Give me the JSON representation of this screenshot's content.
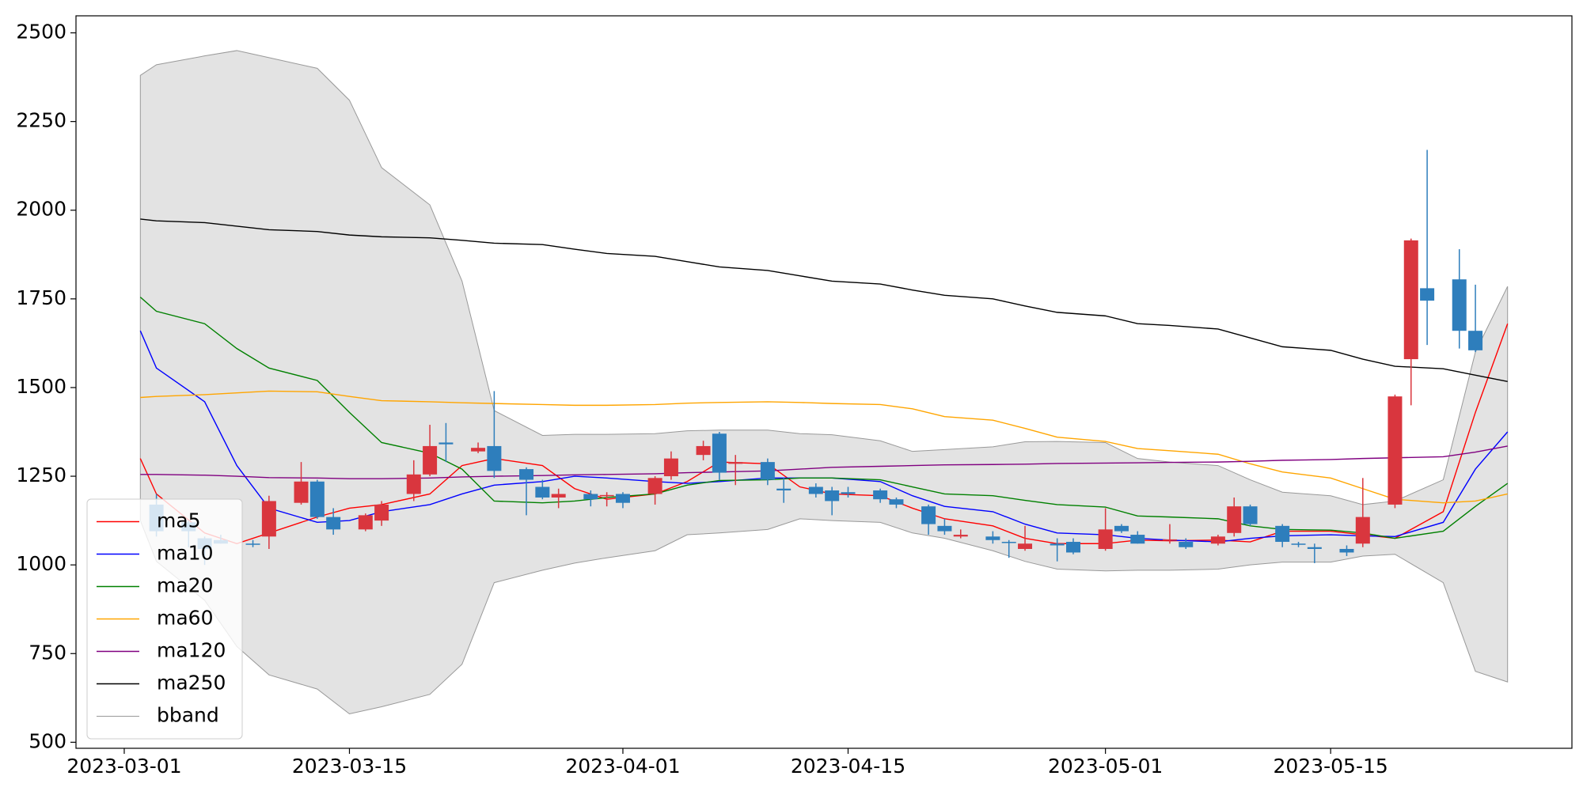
{
  "chart_data": {
    "type": "candlestick",
    "xlim": [
      "2023-02-26",
      "2023-05-30"
    ],
    "xticks": [
      "2023-03-01",
      "2023-03-15",
      "2023-04-01",
      "2023-04-15",
      "2023-05-01",
      "2023-05-15"
    ],
    "ylim": [
      483,
      2548
    ],
    "yticks": [
      500,
      750,
      1000,
      1250,
      1500,
      1750,
      2000,
      2250,
      2500
    ],
    "legend": "lower left",
    "candles": {
      "up_color": "#d9363e",
      "down_color": "#2e7ebc",
      "x": [
        "2023-03-03",
        "2023-03-05",
        "2023-03-06",
        "2023-03-07",
        "2023-03-09",
        "2023-03-10",
        "2023-03-12",
        "2023-03-13",
        "2023-03-14",
        "2023-03-16",
        "2023-03-17",
        "2023-03-19",
        "2023-03-20",
        "2023-03-21",
        "2023-03-23",
        "2023-03-24",
        "2023-03-26",
        "2023-03-27",
        "2023-03-28",
        "2023-03-30",
        "2023-03-31",
        "2023-04-01",
        "2023-04-03",
        "2023-04-04",
        "2023-04-06",
        "2023-04-07",
        "2023-04-08",
        "2023-04-10",
        "2023-04-11",
        "2023-04-13",
        "2023-04-14",
        "2023-04-15",
        "2023-04-17",
        "2023-04-18",
        "2023-04-20",
        "2023-04-21",
        "2023-04-22",
        "2023-04-24",
        "2023-04-25",
        "2023-04-26",
        "2023-04-28",
        "2023-04-29",
        "2023-05-01",
        "2023-05-02",
        "2023-05-03",
        "2023-05-05",
        "2023-05-06",
        "2023-05-08",
        "2023-05-09",
        "2023-05-10",
        "2023-05-12",
        "2023-05-13",
        "2023-05-14",
        "2023-05-16",
        "2023-05-17",
        "2023-05-19",
        "2023-05-20",
        "2023-05-21",
        "2023-05-23",
        "2023-05-24"
      ],
      "open": [
        1170,
        1120,
        1075,
        1070,
        1060,
        1080,
        1175,
        1235,
        1135,
        1100,
        1125,
        1200,
        1255,
        1345,
        1320,
        1335,
        1270,
        1220,
        1190,
        1200,
        1195,
        1200,
        1200,
        1250,
        1310,
        1370,
        1285,
        1290,
        1215,
        1220,
        1210,
        1205,
        1210,
        1185,
        1165,
        1110,
        1080,
        1080,
        1065,
        1045,
        1060,
        1065,
        1045,
        1110,
        1085,
        1070,
        1065,
        1060,
        1090,
        1165,
        1110,
        1060,
        1050,
        1045,
        1060,
        1170,
        1580,
        1780,
        1805,
        1660
      ],
      "high": [
        1200,
        1125,
        1080,
        1085,
        1070,
        1195,
        1290,
        1240,
        1160,
        1145,
        1180,
        1295,
        1395,
        1400,
        1345,
        1490,
        1275,
        1240,
        1215,
        1210,
        1205,
        1205,
        1250,
        1320,
        1350,
        1375,
        1310,
        1300,
        1245,
        1230,
        1220,
        1220,
        1215,
        1190,
        1170,
        1130,
        1100,
        1095,
        1070,
        1110,
        1075,
        1075,
        1160,
        1115,
        1095,
        1115,
        1075,
        1085,
        1190,
        1170,
        1115,
        1065,
        1060,
        1055,
        1245,
        1480,
        1920,
        2170,
        1890,
        1790
      ],
      "low": [
        1080,
        1050,
        1000,
        1060,
        1050,
        1045,
        1170,
        1130,
        1085,
        1095,
        1110,
        1180,
        1250,
        1290,
        1315,
        1245,
        1140,
        1185,
        1160,
        1165,
        1165,
        1160,
        1170,
        1240,
        1295,
        1240,
        1225,
        1225,
        1175,
        1190,
        1140,
        1190,
        1175,
        1160,
        1085,
        1085,
        1075,
        1060,
        1020,
        1040,
        1010,
        1030,
        1040,
        1090,
        1060,
        1060,
        1045,
        1055,
        1080,
        1110,
        1050,
        1050,
        1005,
        1025,
        1050,
        1160,
        1450,
        1620,
        1610,
        1600
      ],
      "close": [
        1095,
        1095,
        1045,
        1060,
        1058,
        1180,
        1235,
        1135,
        1100,
        1140,
        1170,
        1255,
        1335,
        1340,
        1330,
        1265,
        1240,
        1190,
        1200,
        1185,
        1197,
        1175,
        1245,
        1300,
        1335,
        1260,
        1290,
        1240,
        1210,
        1200,
        1180,
        1200,
        1185,
        1170,
        1115,
        1095,
        1085,
        1070,
        1063,
        1060,
        1055,
        1035,
        1100,
        1095,
        1060,
        1072,
        1050,
        1080,
        1165,
        1115,
        1065,
        1058,
        1045,
        1035,
        1135,
        1475,
        1915,
        1745,
        1660,
        1605
      ]
    },
    "x": [
      "2023-03-02",
      "2023-03-03",
      "2023-03-06",
      "2023-03-08",
      "2023-03-10",
      "2023-03-13",
      "2023-03-15",
      "2023-03-17",
      "2023-03-20",
      "2023-03-22",
      "2023-03-24",
      "2023-03-27",
      "2023-03-29",
      "2023-03-31",
      "2023-04-03",
      "2023-04-05",
      "2023-04-07",
      "2023-04-10",
      "2023-04-12",
      "2023-04-14",
      "2023-04-17",
      "2023-04-19",
      "2023-04-21",
      "2023-04-24",
      "2023-04-26",
      "2023-04-28",
      "2023-05-01",
      "2023-05-03",
      "2023-05-05",
      "2023-05-08",
      "2023-05-10",
      "2023-05-12",
      "2023-05-15",
      "2023-05-17",
      "2023-05-19",
      "2023-05-22",
      "2023-05-24",
      "2023-05-26"
    ],
    "series": [
      {
        "name": "ma5",
        "color": "#ff0000",
        "values": [
          1300,
          1200,
          1090,
          1060,
          1090,
          1135,
          1160,
          1170,
          1200,
          1280,
          1300,
          1280,
          1215,
          1185,
          1200,
          1235,
          1290,
          1285,
          1220,
          1200,
          1195,
          1160,
          1130,
          1110,
          1075,
          1060,
          1060,
          1070,
          1068,
          1070,
          1065,
          1095,
          1095,
          1085,
          1075,
          1150,
          1430,
          1680
        ]
      },
      {
        "name": "ma10",
        "color": "#0000ff",
        "values": [
          1660,
          1555,
          1460,
          1280,
          1160,
          1120,
          1125,
          1150,
          1170,
          1200,
          1225,
          1235,
          1250,
          1245,
          1235,
          1230,
          1235,
          1245,
          1245,
          1245,
          1235,
          1195,
          1165,
          1150,
          1115,
          1090,
          1085,
          1075,
          1070,
          1065,
          1075,
          1082,
          1085,
          1082,
          1080,
          1120,
          1270,
          1375
        ]
      },
      {
        "name": "ma20",
        "color": "#008000",
        "values": [
          1755,
          1715,
          1680,
          1610,
          1555,
          1520,
          1430,
          1345,
          1315,
          1270,
          1180,
          1175,
          1180,
          1190,
          1200,
          1225,
          1238,
          1240,
          1245,
          1245,
          1240,
          1220,
          1200,
          1195,
          1182,
          1170,
          1163,
          1138,
          1135,
          1130,
          1110,
          1100,
          1098,
          1090,
          1075,
          1095,
          1165,
          1230
        ]
      },
      {
        "name": "ma60",
        "color": "#ffa500",
        "values": [
          1472,
          1475,
          1480,
          1485,
          1490,
          1488,
          1475,
          1463,
          1460,
          1457,
          1455,
          1452,
          1450,
          1450,
          1452,
          1456,
          1458,
          1460,
          1458,
          1455,
          1452,
          1440,
          1418,
          1408,
          1385,
          1360,
          1348,
          1328,
          1322,
          1312,
          1285,
          1262,
          1245,
          1215,
          1185,
          1175,
          1180,
          1200
        ]
      },
      {
        "name": "ma120",
        "color": "#800080",
        "values": [
          1255,
          1255,
          1253,
          1250,
          1246,
          1245,
          1243,
          1243,
          1245,
          1248,
          1250,
          1252,
          1254,
          1255,
          1257,
          1260,
          1262,
          1265,
          1270,
          1275,
          1278,
          1280,
          1282,
          1283,
          1284,
          1286,
          1287,
          1288,
          1289,
          1290,
          1292,
          1295,
          1297,
          1300,
          1302,
          1305,
          1318,
          1335
        ]
      },
      {
        "name": "ma250",
        "color": "#000000",
        "values": [
          1975,
          1970,
          1965,
          1955,
          1945,
          1940,
          1930,
          1925,
          1922,
          1915,
          1907,
          1903,
          1890,
          1878,
          1870,
          1855,
          1840,
          1830,
          1815,
          1800,
          1792,
          1775,
          1760,
          1750,
          1730,
          1712,
          1702,
          1680,
          1675,
          1665,
          1640,
          1615,
          1605,
          1580,
          1560,
          1553,
          1535,
          1517
        ]
      }
    ],
    "band": {
      "name": "bband",
      "color": "#e3e3e3",
      "edge_color": "#999999",
      "upper": [
        2380,
        2410,
        2435,
        2450,
        2430,
        2400,
        2310,
        2120,
        2015,
        1800,
        1435,
        1365,
        1368,
        1368,
        1370,
        1378,
        1380,
        1380,
        1370,
        1367,
        1350,
        1320,
        1325,
        1333,
        1347,
        1348,
        1345,
        1300,
        1290,
        1280,
        1240,
        1205,
        1195,
        1170,
        1180,
        1240,
        1600,
        1785
      ],
      "lower": [
        1125,
        1010,
        900,
        770,
        690,
        650,
        580,
        600,
        635,
        720,
        950,
        985,
        1005,
        1020,
        1040,
        1085,
        1090,
        1100,
        1130,
        1125,
        1120,
        1090,
        1075,
        1040,
        1010,
        988,
        983,
        985,
        985,
        988,
        1000,
        1008,
        1008,
        1025,
        1030,
        950,
        700,
        670
      ]
    }
  }
}
